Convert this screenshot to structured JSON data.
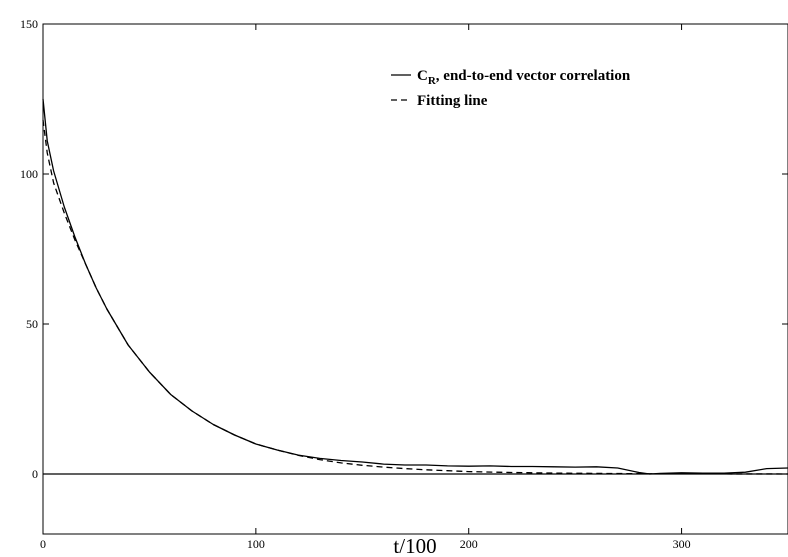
{
  "chart_data": {
    "type": "line",
    "title": "",
    "xlabel": "t/100",
    "ylabel": "",
    "xlim": [
      0,
      350
    ],
    "ylim": [
      -20,
      150
    ],
    "x_ticks": [
      0,
      100,
      200,
      300
    ],
    "y_ticks": [
      0,
      50,
      100,
      150
    ],
    "x_tick_labels": [
      "0",
      "100",
      "200",
      "300"
    ],
    "y_tick_labels": [
      "0",
      "50",
      "100",
      "150"
    ],
    "grid": false,
    "zero_line": true,
    "legend_placement": "top-right",
    "legend": {
      "solid_prefix": "C",
      "solid_subscript": "R",
      "solid_suffix": ", end-to-end vector correlation",
      "dashed_label": "Fitting line"
    },
    "series": [
      {
        "name": "CR, end-to-end vector correlation",
        "style": "solid",
        "color": "#000000",
        "x": [
          0,
          2,
          5,
          10,
          15,
          20,
          25,
          30,
          40,
          50,
          60,
          70,
          80,
          90,
          100,
          110,
          120,
          130,
          140,
          150,
          160,
          170,
          180,
          190,
          200,
          210,
          220,
          230,
          240,
          250,
          260,
          270,
          280,
          285,
          290,
          300,
          310,
          320,
          330,
          340,
          350
        ],
        "y": [
          125,
          111,
          101,
          89,
          79,
          70,
          62,
          55,
          43,
          34,
          26.5,
          21,
          16.5,
          13,
          10,
          8,
          6.3,
          5.2,
          4.5,
          4,
          3.3,
          3,
          3,
          2.7,
          2.6,
          2.7,
          2.5,
          2.5,
          2.4,
          2.3,
          2.4,
          2,
          0.5,
          0,
          0.2,
          0.4,
          0.3,
          0.3,
          0.6,
          1.8,
          2
        ]
      },
      {
        "name": "Fitting line",
        "style": "dashed",
        "color": "#000000",
        "x": [
          0,
          2,
          5,
          10,
          15,
          20,
          25,
          30,
          40,
          50,
          60,
          70,
          80,
          90,
          100,
          110,
          120,
          130,
          140,
          150,
          160,
          170,
          180,
          190,
          200,
          220,
          240,
          260,
          280,
          300,
          320,
          350
        ],
        "y": [
          118,
          107,
          97,
          87,
          78,
          70,
          62,
          55,
          43,
          34,
          26.5,
          21,
          16.5,
          13,
          10,
          8,
          6.2,
          4.8,
          3.7,
          2.9,
          2.3,
          1.8,
          1.4,
          1.1,
          0.8,
          0.5,
          0.3,
          0.2,
          0.1,
          0.05,
          0.03,
          0.01
        ]
      }
    ]
  }
}
